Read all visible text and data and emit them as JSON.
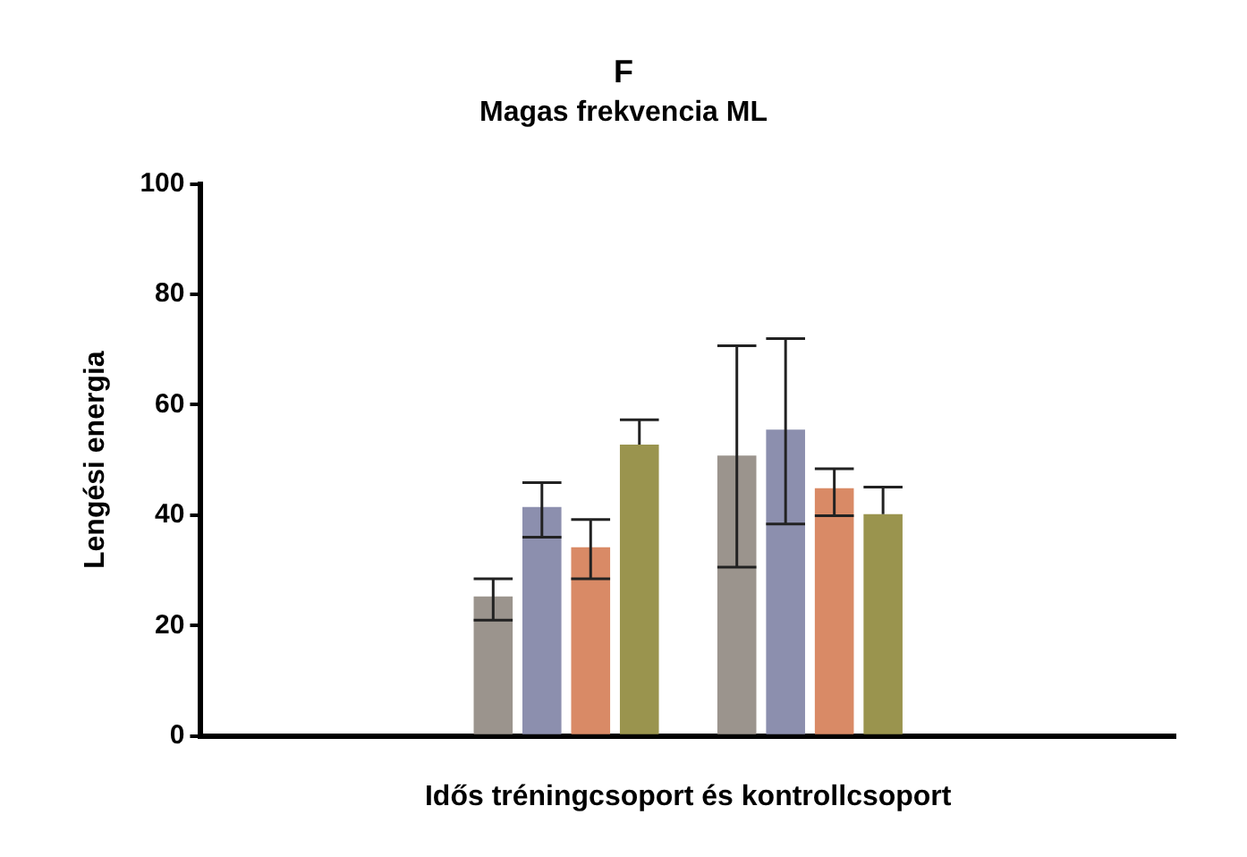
{
  "chart_data": {
    "type": "bar",
    "title": "F",
    "subtitle": "Magas frekvencia ML",
    "xlabel": "Idős tréningcsoport és kontrollcsoport",
    "ylabel": "Lengési energia",
    "categories": [
      null,
      null,
      null,
      null
    ],
    "series": [
      {
        "color": "#9b948d",
        "values": [
          null,
          25.3,
          50.8,
          null
        ],
        "errors": [
          null,
          [
            21,
            28.5
          ],
          [
            30.6,
            70.7
          ],
          null
        ]
      },
      {
        "color": "#8c8fae",
        "values": [
          null,
          41.5,
          55.5,
          null
        ],
        "errors": [
          null,
          [
            36,
            45.9
          ],
          [
            38.4,
            72
          ],
          null
        ]
      },
      {
        "color": "#d98a66",
        "values": [
          null,
          34.2,
          44.9,
          null
        ],
        "errors": [
          null,
          [
            28.5,
            39.2
          ],
          [
            39.9,
            48.4
          ],
          null
        ]
      },
      {
        "color": "#9a944e",
        "values": [
          null,
          52.8,
          40.2,
          null
        ],
        "errors": [
          null,
          [
            52.8,
            57.3
          ],
          [
            40.2,
            45.1
          ],
          null
        ]
      }
    ],
    "ylim": [
      0,
      100
    ],
    "yticks": [
      0,
      20,
      40,
      60,
      80,
      100
    ],
    "grid": false,
    "legend": false
  }
}
